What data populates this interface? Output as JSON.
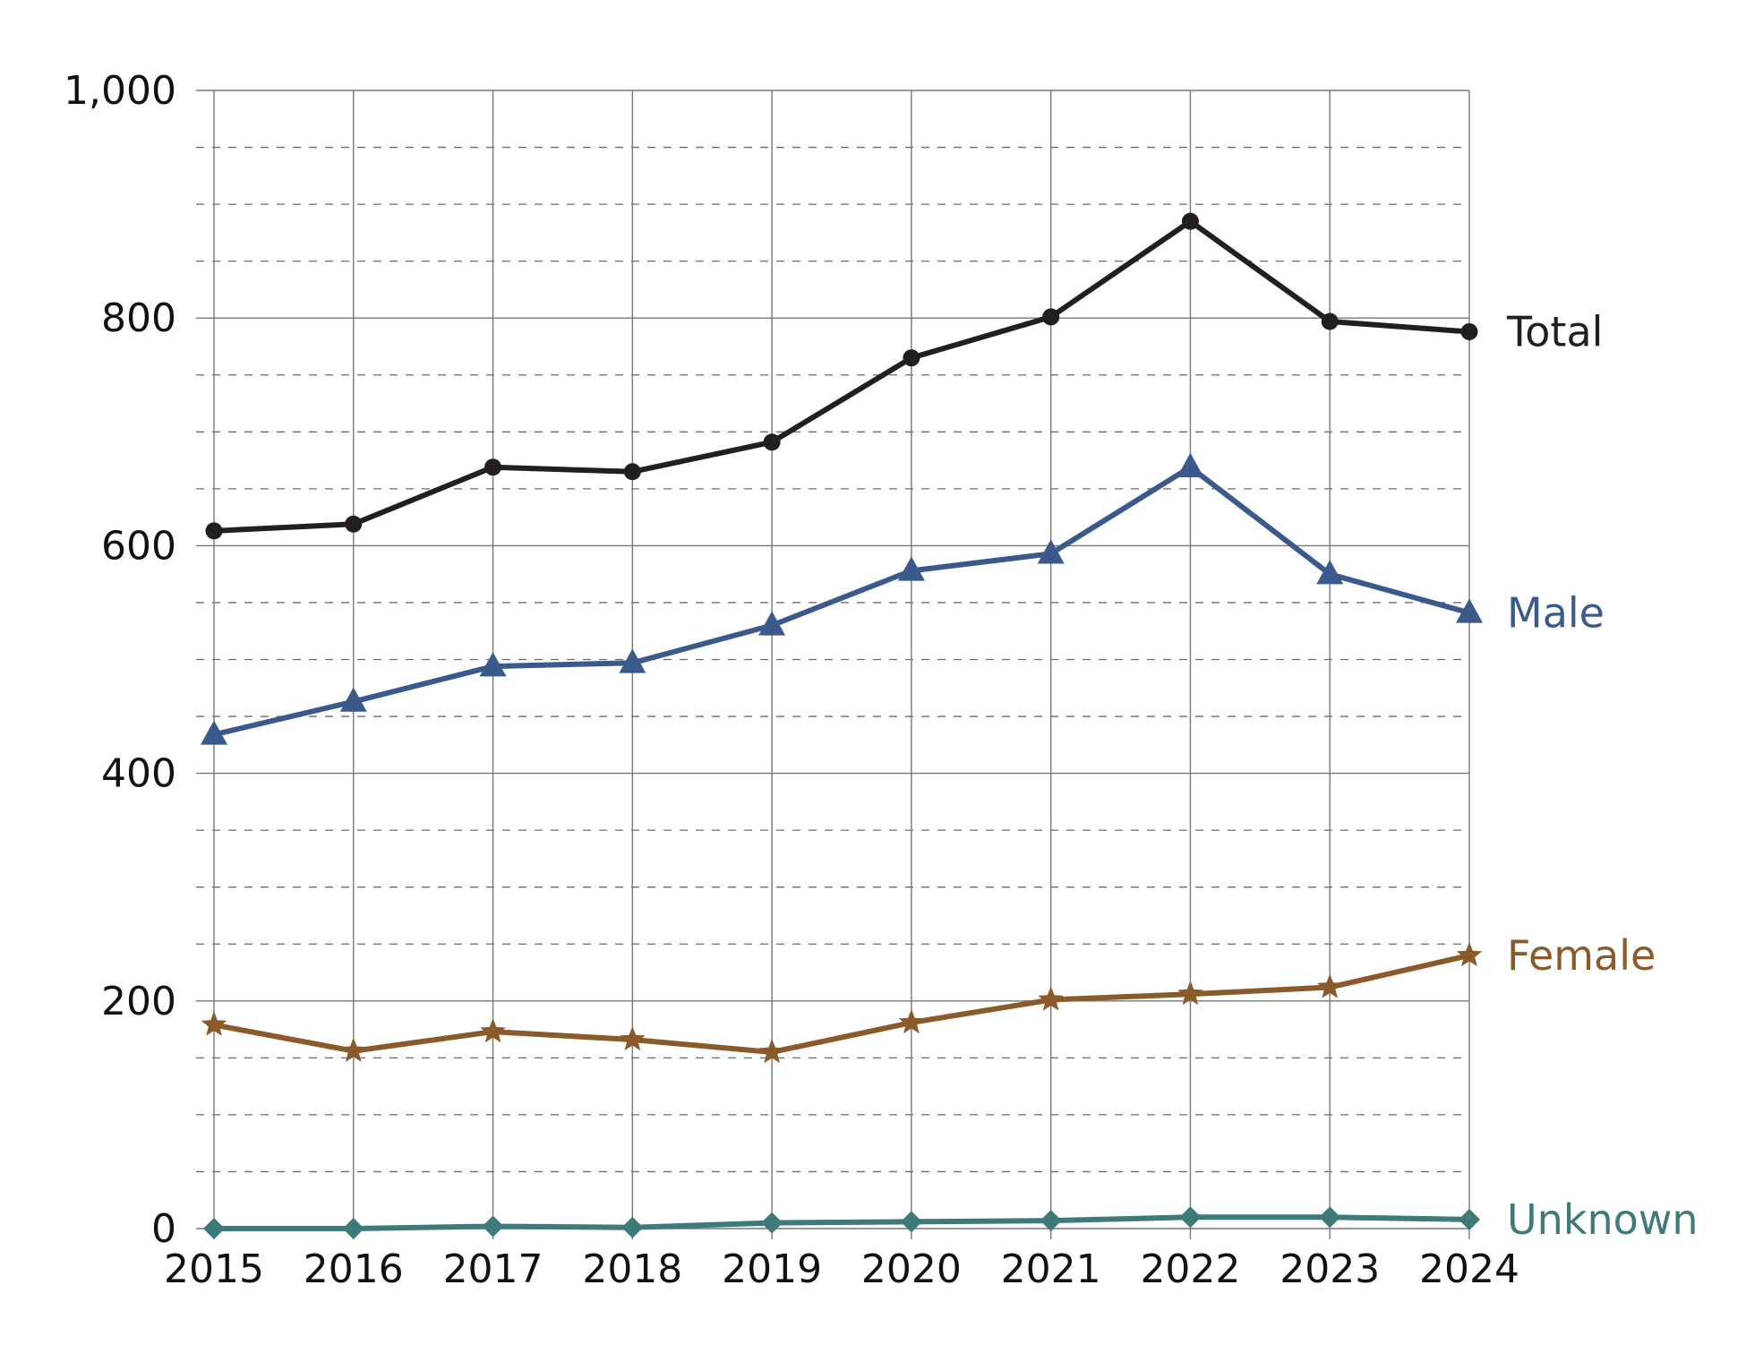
{
  "chart_data": {
    "type": "line",
    "title": "",
    "xlabel": "",
    "ylabel": "",
    "x": [
      2015,
      2016,
      2017,
      2018,
      2019,
      2020,
      2021,
      2022,
      2023,
      2024
    ],
    "x_tick_labels": [
      "2015",
      "2016",
      "2017",
      "2018",
      "2019",
      "2020",
      "2021",
      "2022",
      "2023",
      "2024"
    ],
    "ylim": [
      0,
      1000
    ],
    "y_tick_values": [
      0,
      200,
      400,
      600,
      800,
      1000
    ],
    "y_tick_labels": [
      "0",
      "200",
      "400",
      "600",
      "800",
      "1,000"
    ],
    "grid": {
      "major_solid": true,
      "minor_dashed": true,
      "minor_step": 50,
      "vertical_lines": true
    },
    "legend": "direct labels at right end of lines",
    "series": [
      {
        "name": "Total",
        "values": [
          613,
          619,
          669,
          665,
          691,
          765,
          801,
          885,
          797,
          788
        ],
        "color": "#231f20",
        "marker": "circle"
      },
      {
        "name": "Male",
        "values": [
          434,
          463,
          494,
          497,
          530,
          578,
          593,
          669,
          575,
          541
        ],
        "color": "#3a5a8c",
        "marker": "triangle"
      },
      {
        "name": "Female",
        "values": [
          179,
          156,
          173,
          166,
          155,
          181,
          201,
          206,
          212,
          240
        ],
        "color": "#8b5a2b",
        "marker": "star"
      },
      {
        "name": "Unknown",
        "values": [
          0,
          0,
          2,
          1,
          5,
          6,
          7,
          10,
          10,
          8
        ],
        "color": "#3e7a7a",
        "marker": "diamond"
      }
    ]
  }
}
